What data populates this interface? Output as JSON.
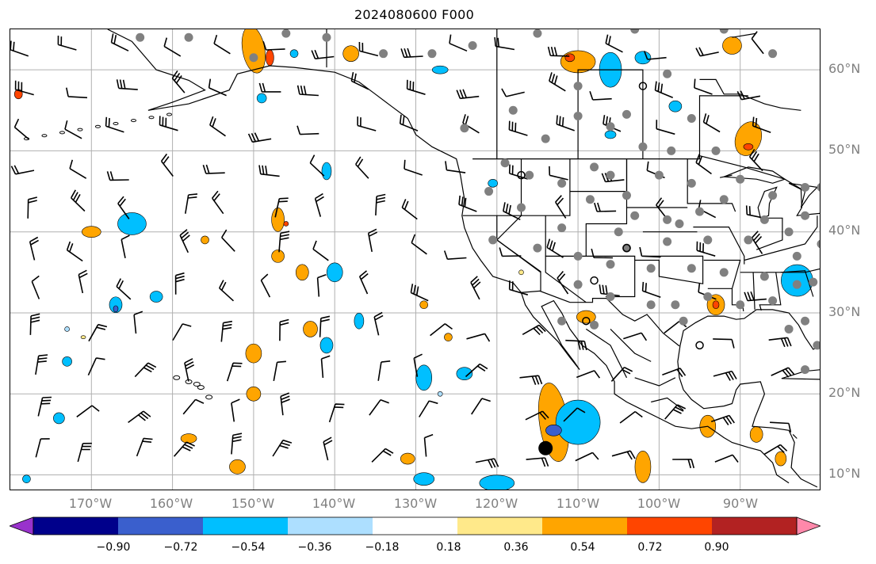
{
  "title": "2024080600 F000",
  "lat_labels": [
    "60°N",
    "50°N",
    "40°N",
    "30°N",
    "20°N",
    "10°N"
  ],
  "lat_values": [
    60,
    50,
    40,
    30,
    20,
    10
  ],
  "lon_labels": [
    "170°W",
    "160°W",
    "150°W",
    "140°W",
    "130°W",
    "120°W",
    "110°W",
    "100°W",
    "90°W"
  ],
  "lon_values": [
    -170,
    -160,
    -150,
    -140,
    -130,
    -120,
    -110,
    -100,
    -90
  ],
  "map_extent": {
    "lon_min": -180,
    "lon_max": -80,
    "lat_min": 8,
    "lat_max": 65
  },
  "colorbar": {
    "colors": [
      "#9932CC",
      "#00008B",
      "#3A5FCD",
      "#00BFFF",
      "#ADDFFF",
      "#FFFFFF",
      "#FFE98A",
      "#FFA500",
      "#FF4500",
      "#B22222",
      "#FF88AA"
    ],
    "tick_labels": [
      "−0.90",
      "−0.72",
      "−0.54",
      "−0.36",
      "−0.18",
      "0.18",
      "0.36",
      "0.54",
      "0.72",
      "0.90"
    ],
    "tick_values": [
      -0.9,
      -0.72,
      -0.54,
      -0.36,
      -0.18,
      0.18,
      0.36,
      0.54,
      0.72,
      0.9
    ]
  },
  "colors": {
    "grid": "#b0b0b0",
    "coast": "#000000",
    "barb": "#000000",
    "station": "#808080"
  }
}
